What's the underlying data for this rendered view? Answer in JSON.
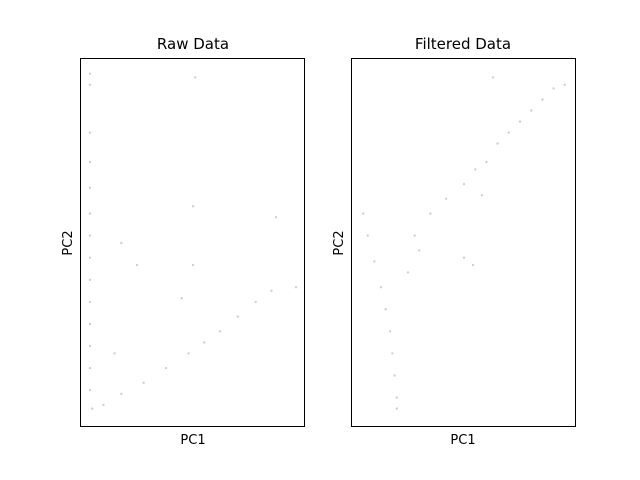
{
  "chart_data": [
    {
      "type": "scatter",
      "title": "Raw Data",
      "xlabel": "PC1",
      "ylabel": "PC2",
      "xlim": [
        0,
        100
      ],
      "ylim": [
        0,
        100
      ],
      "ticks": false,
      "grid": false,
      "legend": "none",
      "point_color": "#cfcfcf",
      "series": [
        {
          "description_points": [
            {
              "x": 4,
              "y": 96
            },
            {
              "x": 4,
              "y": 93
            },
            {
              "x": 4,
              "y": 80
            },
            {
              "x": 4,
              "y": 72
            },
            {
              "x": 4,
              "y": 65
            },
            {
              "x": 4,
              "y": 58
            },
            {
              "x": 4,
              "y": 52
            },
            {
              "x": 4,
              "y": 46
            },
            {
              "x": 4,
              "y": 40
            },
            {
              "x": 4,
              "y": 34
            },
            {
              "x": 4,
              "y": 28
            },
            {
              "x": 4,
              "y": 22
            },
            {
              "x": 4,
              "y": 16
            },
            {
              "x": 4,
              "y": 10
            },
            {
              "x": 5,
              "y": 5
            },
            {
              "x": 10,
              "y": 6
            },
            {
              "x": 18,
              "y": 9
            },
            {
              "x": 28,
              "y": 12
            },
            {
              "x": 38,
              "y": 16
            },
            {
              "x": 48,
              "y": 20
            },
            {
              "x": 55,
              "y": 23
            },
            {
              "x": 62,
              "y": 26
            },
            {
              "x": 70,
              "y": 30
            },
            {
              "x": 78,
              "y": 34
            },
            {
              "x": 85,
              "y": 37
            },
            {
              "x": 96,
              "y": 38
            },
            {
              "x": 50,
              "y": 60
            },
            {
              "x": 18,
              "y": 50
            },
            {
              "x": 25,
              "y": 44
            },
            {
              "x": 50,
              "y": 44
            },
            {
              "x": 87,
              "y": 57
            },
            {
              "x": 51,
              "y": 95
            },
            {
              "x": 45,
              "y": 35
            },
            {
              "x": 15,
              "y": 20
            }
          ]
        }
      ]
    },
    {
      "type": "scatter",
      "title": "Filtered Data",
      "xlabel": "PC1",
      "ylabel": "PC2",
      "xlim": [
        0,
        100
      ],
      "ylim": [
        0,
        100
      ],
      "ticks": false,
      "grid": false,
      "legend": "none",
      "point_color": "#cfcfcf",
      "series": [
        {
          "description_points": [
            {
              "x": 5,
              "y": 58
            },
            {
              "x": 7,
              "y": 52
            },
            {
              "x": 10,
              "y": 45
            },
            {
              "x": 13,
              "y": 38
            },
            {
              "x": 15,
              "y": 32
            },
            {
              "x": 17,
              "y": 26
            },
            {
              "x": 18,
              "y": 20
            },
            {
              "x": 19,
              "y": 14
            },
            {
              "x": 20,
              "y": 8
            },
            {
              "x": 20,
              "y": 5
            },
            {
              "x": 28,
              "y": 52
            },
            {
              "x": 35,
              "y": 58
            },
            {
              "x": 42,
              "y": 62
            },
            {
              "x": 50,
              "y": 66
            },
            {
              "x": 55,
              "y": 70
            },
            {
              "x": 58,
              "y": 63
            },
            {
              "x": 60,
              "y": 72
            },
            {
              "x": 65,
              "y": 77
            },
            {
              "x": 70,
              "y": 80
            },
            {
              "x": 75,
              "y": 83
            },
            {
              "x": 80,
              "y": 86
            },
            {
              "x": 85,
              "y": 89
            },
            {
              "x": 90,
              "y": 92
            },
            {
              "x": 95,
              "y": 93
            },
            {
              "x": 63,
              "y": 95
            },
            {
              "x": 25,
              "y": 42
            },
            {
              "x": 50,
              "y": 46
            },
            {
              "x": 54,
              "y": 44
            },
            {
              "x": 30,
              "y": 48
            }
          ]
        }
      ]
    }
  ]
}
